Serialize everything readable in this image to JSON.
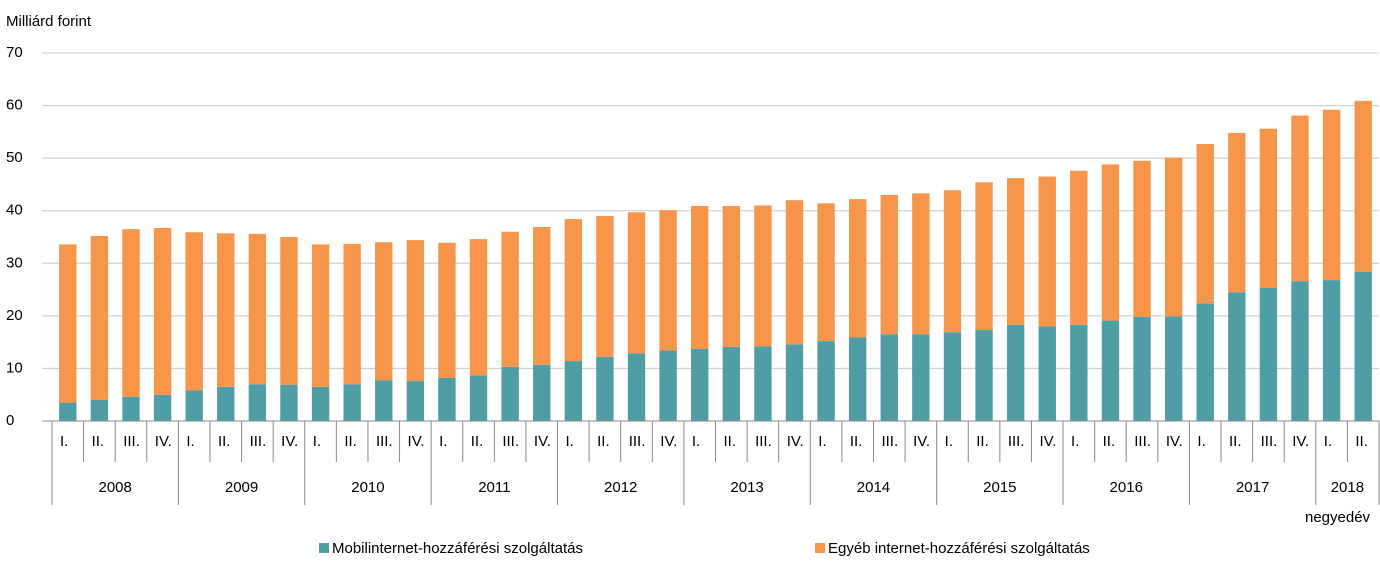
{
  "chart_data": {
    "type": "stacked_bar",
    "y_label": "Milliárd forint",
    "x_label": "negyedév",
    "categories": [
      {
        "quarter": "I.",
        "year": "2008"
      },
      {
        "quarter": "II."
      },
      {
        "quarter": "III."
      },
      {
        "quarter": "IV."
      },
      {
        "quarter": "I.",
        "year": "2009"
      },
      {
        "quarter": "II."
      },
      {
        "quarter": "III."
      },
      {
        "quarter": "IV."
      },
      {
        "quarter": "I.",
        "year": "2010"
      },
      {
        "quarter": "II."
      },
      {
        "quarter": "III."
      },
      {
        "quarter": "IV."
      },
      {
        "quarter": "I.",
        "year": "2011"
      },
      {
        "quarter": "II."
      },
      {
        "quarter": "III."
      },
      {
        "quarter": "IV."
      },
      {
        "quarter": "I.",
        "year": "2012"
      },
      {
        "quarter": "II."
      },
      {
        "quarter": "III."
      },
      {
        "quarter": "IV."
      },
      {
        "quarter": "I.",
        "year": "2013"
      },
      {
        "quarter": "II."
      },
      {
        "quarter": "III."
      },
      {
        "quarter": "IV."
      },
      {
        "quarter": "I.",
        "year": "2014"
      },
      {
        "quarter": "II."
      },
      {
        "quarter": "III."
      },
      {
        "quarter": "IV."
      },
      {
        "quarter": "I.",
        "year": "2015"
      },
      {
        "quarter": "II."
      },
      {
        "quarter": "III."
      },
      {
        "quarter": "IV."
      },
      {
        "quarter": "I.",
        "year": "2016"
      },
      {
        "quarter": "II."
      },
      {
        "quarter": "III."
      },
      {
        "quarter": "IV."
      },
      {
        "quarter": "I.",
        "year": "2017"
      },
      {
        "quarter": "II."
      },
      {
        "quarter": "III."
      },
      {
        "quarter": "IV."
      },
      {
        "quarter": "I.",
        "year": "2018"
      },
      {
        "quarter": "II."
      }
    ],
    "series": [
      {
        "name": "Mobilinternet-hozzáférési szolgáltatás",
        "color": "#4f9ea6",
        "values": [
          3.5,
          4.0,
          4.6,
          5.0,
          5.8,
          6.5,
          7.0,
          6.9,
          6.5,
          7.0,
          7.7,
          7.6,
          8.2,
          8.7,
          10.3,
          10.7,
          11.4,
          12.2,
          12.9,
          13.4,
          13.7,
          14.1,
          14.2,
          14.6,
          15.2,
          15.9,
          16.5,
          16.5,
          16.9,
          17.3,
          18.3,
          18.0,
          18.3,
          19.1,
          19.8,
          19.9,
          22.4,
          24.5,
          25.3,
          26.6,
          26.8,
          28.4
        ]
      },
      {
        "name": "Egyéb internet-hozzáférési szolgáltatás",
        "color": "#f7964a",
        "values": [
          30.1,
          31.2,
          31.9,
          31.7,
          30.1,
          29.2,
          28.6,
          28.1,
          27.1,
          26.7,
          26.3,
          26.8,
          25.7,
          25.9,
          25.7,
          26.2,
          27.0,
          26.8,
          26.8,
          26.7,
          27.2,
          26.8,
          26.8,
          27.4,
          26.2,
          26.3,
          26.5,
          26.8,
          27.0,
          28.1,
          27.9,
          28.5,
          29.3,
          29.7,
          29.7,
          30.2,
          30.3,
          30.3,
          30.3,
          31.5,
          32.4,
          32.5
        ]
      }
    ],
    "ylim": [
      0,
      70
    ],
    "yticks": [
      0,
      10,
      20,
      30,
      40,
      50,
      60,
      70
    ],
    "grid": true
  }
}
